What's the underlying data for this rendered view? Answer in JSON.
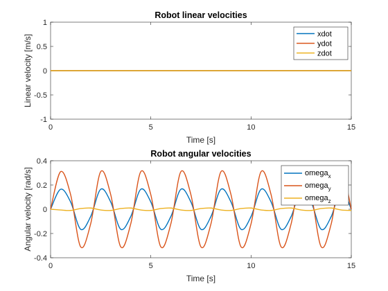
{
  "chart_data": [
    {
      "type": "line",
      "title": "Robot linear velocities",
      "xlabel": "Time [s]",
      "ylabel": "Linear velocity [m/s]",
      "xlim": [
        0,
        15
      ],
      "ylim": [
        -1,
        1
      ],
      "xticks": [
        "0",
        "5",
        "10",
        "15"
      ],
      "yticks": [
        "-1",
        "-0.5",
        "0",
        "0.5",
        "1"
      ],
      "grid": false,
      "legend_position": "top-right",
      "series": [
        {
          "name": "xdot",
          "color": "#0072BD",
          "x": [
            0,
            15
          ],
          "y": [
            0,
            0
          ]
        },
        {
          "name": "ydot",
          "color": "#D95319",
          "x": [
            0,
            15
          ],
          "y": [
            0,
            0
          ]
        },
        {
          "name": "zdot",
          "color": "#EDB120",
          "x": [
            0,
            15
          ],
          "y": [
            0,
            0
          ]
        }
      ]
    },
    {
      "type": "line",
      "title": "Robot angular velocities",
      "xlabel": "Time [s]",
      "ylabel": "Angular velocity [rad/s]",
      "xlim": [
        0,
        15
      ],
      "ylim": [
        -0.4,
        0.4
      ],
      "xticks": [
        "0",
        "5",
        "10",
        "15"
      ],
      "yticks": [
        "-0.4",
        "-0.2",
        "0",
        "0.2",
        "0.4"
      ],
      "grid": false,
      "legend_position": "top-right",
      "series": [
        {
          "name": "omega",
          "subscript": "x",
          "color": "#0072BD",
          "x": [
            0,
            0.5,
            1.0,
            1.5,
            2.0,
            2.5,
            3.0,
            3.5,
            4.0,
            4.5,
            5.0,
            5.5,
            6.0,
            6.5,
            7.0,
            7.5,
            8.0,
            8.5,
            9.0,
            9.5,
            10.0,
            10.5,
            11.0,
            11.5,
            12.0,
            12.5,
            13.0,
            13.5,
            14.0,
            14.5,
            15.0
          ],
          "y": [
            0,
            0.165,
            0.06,
            -0.165,
            -0.06,
            0.165,
            0.06,
            -0.165,
            -0.06,
            0.165,
            0.06,
            -0.165,
            -0.06,
            0.165,
            0.06,
            -0.165,
            -0.06,
            0.165,
            0.06,
            -0.165,
            -0.06,
            0.165,
            0.06,
            -0.165,
            -0.06,
            0.165,
            0.06,
            -0.165,
            -0.06,
            0.165,
            0.0
          ]
        },
        {
          "name": "omega",
          "subscript": "y",
          "color": "#D95319",
          "x": [
            0,
            0.5,
            1.0,
            1.5,
            2.0,
            2.5,
            3.0,
            3.5,
            4.0,
            4.5,
            5.0,
            5.5,
            6.0,
            6.5,
            7.0,
            7.5,
            8.0,
            8.5,
            9.0,
            9.5,
            10.0,
            10.5,
            11.0,
            11.5,
            12.0,
            12.5,
            13.0,
            13.5,
            14.0,
            14.5,
            15.0
          ],
          "y": [
            0,
            0.31,
            0.12,
            -0.31,
            -0.12,
            0.31,
            0.12,
            -0.31,
            -0.12,
            0.31,
            0.12,
            -0.31,
            -0.12,
            0.31,
            0.12,
            -0.31,
            -0.12,
            0.31,
            0.12,
            -0.31,
            -0.12,
            0.31,
            0.12,
            -0.31,
            -0.12,
            0.31,
            0.12,
            -0.31,
            -0.12,
            0.31,
            0.0
          ]
        },
        {
          "name": "omega",
          "subscript": "z",
          "color": "#EDB120",
          "x": [
            0,
            0.5,
            1.0,
            1.5,
            2.0,
            2.5,
            3.0,
            3.5,
            4.0,
            4.5,
            5.0,
            5.5,
            6.0,
            6.5,
            7.0,
            7.5,
            8.0,
            8.5,
            9.0,
            9.5,
            10.0,
            10.5,
            11.0,
            11.5,
            12.0,
            12.5,
            13.0,
            13.5,
            14.0,
            14.5,
            15.0
          ],
          "y": [
            0,
            -0.006,
            -0.01,
            0.006,
            0.01,
            -0.006,
            -0.01,
            0.006,
            0.01,
            -0.006,
            -0.01,
            0.006,
            0.01,
            -0.006,
            -0.01,
            0.006,
            0.01,
            -0.006,
            -0.01,
            0.006,
            0.01,
            -0.006,
            -0.01,
            0.006,
            0.01,
            -0.006,
            -0.01,
            0.006,
            0.01,
            -0.006,
            -0.01
          ]
        }
      ]
    }
  ]
}
